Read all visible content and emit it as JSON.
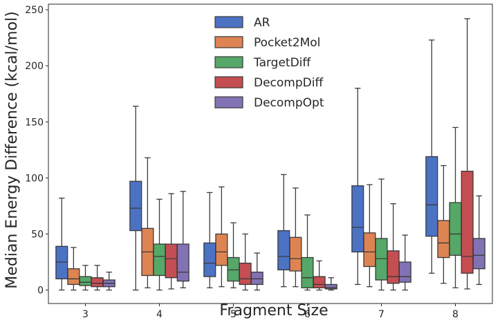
{
  "chart_data": {
    "type": "box",
    "xlabel": "Fragment Size",
    "ylabel": "Median Energy Difference (kcal/mol)",
    "categories": [
      "3",
      "4",
      "5",
      "6",
      "7",
      "8"
    ],
    "yticks": [
      0,
      50,
      100,
      150,
      200,
      250
    ],
    "ylim": [
      -12,
      255
    ],
    "grid": false,
    "legend": {
      "placement": "top-center"
    },
    "series": [
      {
        "name": "AR",
        "color": "#4c72c4",
        "boxes": [
          {
            "whislo": 0,
            "q1": 10,
            "med": 25,
            "q3": 39,
            "whishi": 82
          },
          {
            "whislo": 0,
            "q1": 53,
            "med": 73,
            "q3": 97,
            "whishi": 164
          },
          {
            "whislo": 2,
            "q1": 12,
            "med": 24,
            "q3": 42,
            "whishi": 87
          },
          {
            "whislo": 3,
            "q1": 18,
            "med": 30,
            "q3": 53,
            "whishi": 103
          },
          {
            "whislo": 5,
            "q1": 34,
            "med": 56,
            "q3": 93,
            "whishi": 180
          },
          {
            "whislo": 15,
            "q1": 48,
            "med": 76,
            "q3": 119,
            "whishi": 223
          }
        ]
      },
      {
        "name": "Pocket2Mol",
        "color": "#dd8452",
        "boxes": [
          {
            "whislo": 0,
            "q1": 5,
            "med": 10,
            "q3": 19,
            "whishi": 38
          },
          {
            "whislo": 2,
            "q1": 13,
            "med": 34,
            "q3": 55,
            "whishi": 118
          },
          {
            "whislo": 3,
            "q1": 22,
            "med": 34,
            "q3": 50,
            "whishi": 92
          },
          {
            "whislo": 3,
            "q1": 17,
            "med": 28,
            "q3": 47,
            "whishi": 91
          },
          {
            "whislo": 3,
            "q1": 21,
            "med": 34,
            "q3": 51,
            "whishi": 94
          },
          {
            "whislo": 6,
            "q1": 29,
            "med": 42,
            "q3": 62,
            "whishi": 111
          }
        ]
      },
      {
        "name": "TargetDiff",
        "color": "#55a868",
        "boxes": [
          {
            "whislo": 0,
            "q1": 4,
            "med": 7,
            "q3": 12,
            "whishi": 22
          },
          {
            "whislo": 0,
            "q1": 13,
            "med": 30,
            "q3": 41,
            "whishi": 81
          },
          {
            "whislo": 2,
            "q1": 8,
            "med": 18,
            "q3": 29,
            "whishi": 60
          },
          {
            "whislo": 0,
            "q1": 2,
            "med": 11,
            "q3": 29,
            "whishi": 67
          },
          {
            "whislo": 0,
            "q1": 9,
            "med": 28,
            "q3": 46,
            "whishi": 99
          },
          {
            "whislo": 2,
            "q1": 31,
            "med": 50,
            "q3": 78,
            "whishi": 145
          }
        ]
      },
      {
        "name": "DecompDiff",
        "color": "#c44e52",
        "boxes": [
          {
            "whislo": 0,
            "q1": 3,
            "med": 6,
            "q3": 11,
            "whishi": 22
          },
          {
            "whislo": 1,
            "q1": 11,
            "med": 28,
            "q3": 41,
            "whishi": 86
          },
          {
            "whislo": 0,
            "q1": 5,
            "med": 10,
            "q3": 24,
            "whishi": 50
          },
          {
            "whislo": 0,
            "q1": 2,
            "med": 5,
            "q3": 12,
            "whishi": 26
          },
          {
            "whislo": 0,
            "q1": 6,
            "med": 12,
            "q3": 35,
            "whishi": 77
          },
          {
            "whislo": 1,
            "q1": 15,
            "med": 30,
            "q3": 106,
            "whishi": 242
          }
        ]
      },
      {
        "name": "DecompOpt",
        "color": "#8172b3",
        "boxes": [
          {
            "whislo": 0,
            "q1": 3,
            "med": 6,
            "q3": 9,
            "whishi": 16
          },
          {
            "whislo": 2,
            "q1": 8,
            "med": 16,
            "q3": 41,
            "whishi": 88
          },
          {
            "whislo": 0,
            "q1": 5,
            "med": 10,
            "q3": 16,
            "whishi": 33
          },
          {
            "whislo": 0,
            "q1": 1,
            "med": 2,
            "q3": 5,
            "whishi": 11
          },
          {
            "whislo": 0,
            "q1": 7,
            "med": 12,
            "q3": 25,
            "whishi": 49
          },
          {
            "whislo": 5,
            "q1": 19,
            "med": 31,
            "q3": 46,
            "whishi": 84
          }
        ]
      }
    ]
  }
}
